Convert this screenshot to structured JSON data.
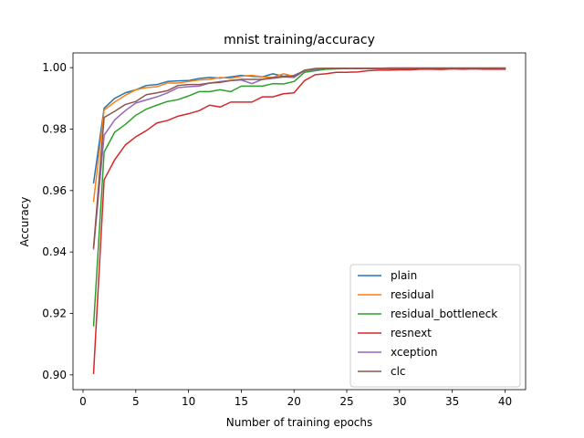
{
  "chart_data": {
    "type": "line",
    "title": "mnist training/accuracy",
    "xlabel": "Number of training epochs",
    "ylabel": "Accuracy",
    "xlim": [
      -0.95,
      41.95
    ],
    "ylim": [
      0.8952,
      1.0048
    ],
    "xticks": [
      0,
      5,
      10,
      15,
      20,
      25,
      30,
      35,
      40
    ],
    "yticks": [
      0.9,
      0.92,
      0.94,
      0.96,
      0.98,
      1.0
    ],
    "ytick_labels": [
      "0.90",
      "0.92",
      "0.94",
      "0.96",
      "0.98",
      "1.00"
    ],
    "grid": false,
    "legend_position": "lower-right",
    "x": [
      1,
      2,
      3,
      4,
      5,
      6,
      7,
      8,
      9,
      10,
      11,
      12,
      13,
      14,
      15,
      16,
      17,
      18,
      19,
      20,
      21,
      22,
      23,
      24,
      25,
      26,
      27,
      28,
      29,
      30,
      31,
      32,
      33,
      34,
      35,
      36,
      37,
      38,
      39,
      40
    ],
    "series": [
      {
        "name": "plain",
        "color": "#1f77b4",
        "values": [
          0.9625,
          0.9868,
          0.99,
          0.9918,
          0.9928,
          0.9942,
          0.9945,
          0.9955,
          0.9957,
          0.9958,
          0.9965,
          0.9968,
          0.9966,
          0.997,
          0.9975,
          0.9972,
          0.997,
          0.998,
          0.9972,
          0.9975,
          0.999,
          0.9995,
          0.9997,
          0.9997,
          0.9998,
          0.9998,
          0.9998,
          0.9998,
          0.9999,
          0.9999,
          0.9999,
          0.9999,
          0.9999,
          0.9999,
          0.9999,
          0.9999,
          0.9999,
          0.9999,
          0.9999,
          0.9999
        ]
      },
      {
        "name": "residual",
        "color": "#ff7f0e",
        "values": [
          0.9565,
          0.9862,
          0.9888,
          0.991,
          0.9928,
          0.9935,
          0.9938,
          0.995,
          0.995,
          0.9955,
          0.996,
          0.9962,
          0.9968,
          0.9965,
          0.9972,
          0.9975,
          0.997,
          0.9968,
          0.998,
          0.9972,
          0.999,
          0.9997,
          0.9998,
          0.9998,
          0.9998,
          0.9998,
          0.9998,
          0.9998,
          0.9998,
          0.9998,
          0.9998,
          0.9998,
          0.9998,
          0.9998,
          0.9998,
          0.9998,
          0.9998,
          0.9998,
          0.9998,
          0.9998
        ]
      },
      {
        "name": "residual_bottleneck",
        "color": "#2ca02c",
        "values": [
          0.916,
          0.9725,
          0.979,
          0.9815,
          0.9845,
          0.9865,
          0.9878,
          0.989,
          0.9896,
          0.9908,
          0.9922,
          0.9922,
          0.9928,
          0.9922,
          0.994,
          0.994,
          0.994,
          0.9948,
          0.9947,
          0.9955,
          0.9985,
          0.999,
          0.9995,
          0.9996,
          0.9997,
          0.9997,
          0.9997,
          0.9997,
          0.9997,
          0.9997,
          0.9997,
          0.9997,
          0.9997,
          0.9997,
          0.9997,
          0.9997,
          0.9997,
          0.9997,
          0.9997,
          0.9997
        ]
      },
      {
        "name": "resnext",
        "color": "#d62728",
        "values": [
          0.9005,
          0.9635,
          0.97,
          0.9748,
          0.9775,
          0.9795,
          0.982,
          0.9828,
          0.9842,
          0.985,
          0.986,
          0.9878,
          0.9872,
          0.9888,
          0.9888,
          0.9888,
          0.9905,
          0.9905,
          0.9915,
          0.9918,
          0.9958,
          0.9977,
          0.998,
          0.9985,
          0.9985,
          0.9986,
          0.999,
          0.9992,
          0.9992,
          0.9993,
          0.9993,
          0.9995,
          0.9995,
          0.9994,
          0.9996,
          0.9995,
          0.9996,
          0.9995,
          0.9995,
          0.9995
        ]
      },
      {
        "name": "xception",
        "color": "#9467bd",
        "values": [
          0.941,
          0.978,
          0.983,
          0.986,
          0.9885,
          0.9895,
          0.9905,
          0.9918,
          0.9935,
          0.9938,
          0.994,
          0.995,
          0.9955,
          0.9958,
          0.996,
          0.9948,
          0.9962,
          0.9965,
          0.997,
          0.9968,
          0.999,
          0.9995,
          0.9997,
          0.9997,
          0.9997,
          0.9998,
          0.9998,
          0.9998,
          0.9998,
          0.9998,
          0.9998,
          0.9998,
          0.9998,
          0.9998,
          0.9998,
          0.9998,
          0.9998,
          0.9998,
          0.9998,
          0.9998
        ]
      },
      {
        "name": "clc",
        "color": "#8c564b",
        "values": [
          0.9415,
          0.9838,
          0.9858,
          0.988,
          0.989,
          0.9912,
          0.9918,
          0.9925,
          0.9942,
          0.9945,
          0.9945,
          0.995,
          0.9952,
          0.9958,
          0.9962,
          0.9962,
          0.9962,
          0.9968,
          0.997,
          0.9972,
          0.9992,
          0.9997,
          0.9998,
          0.9998,
          0.9998,
          0.9998,
          0.9998,
          0.9998,
          0.9998,
          0.9998,
          0.9998,
          0.9998,
          0.9998,
          0.9998,
          0.9998,
          0.9998,
          0.9998,
          0.9998,
          0.9998,
          0.9998
        ]
      }
    ]
  }
}
